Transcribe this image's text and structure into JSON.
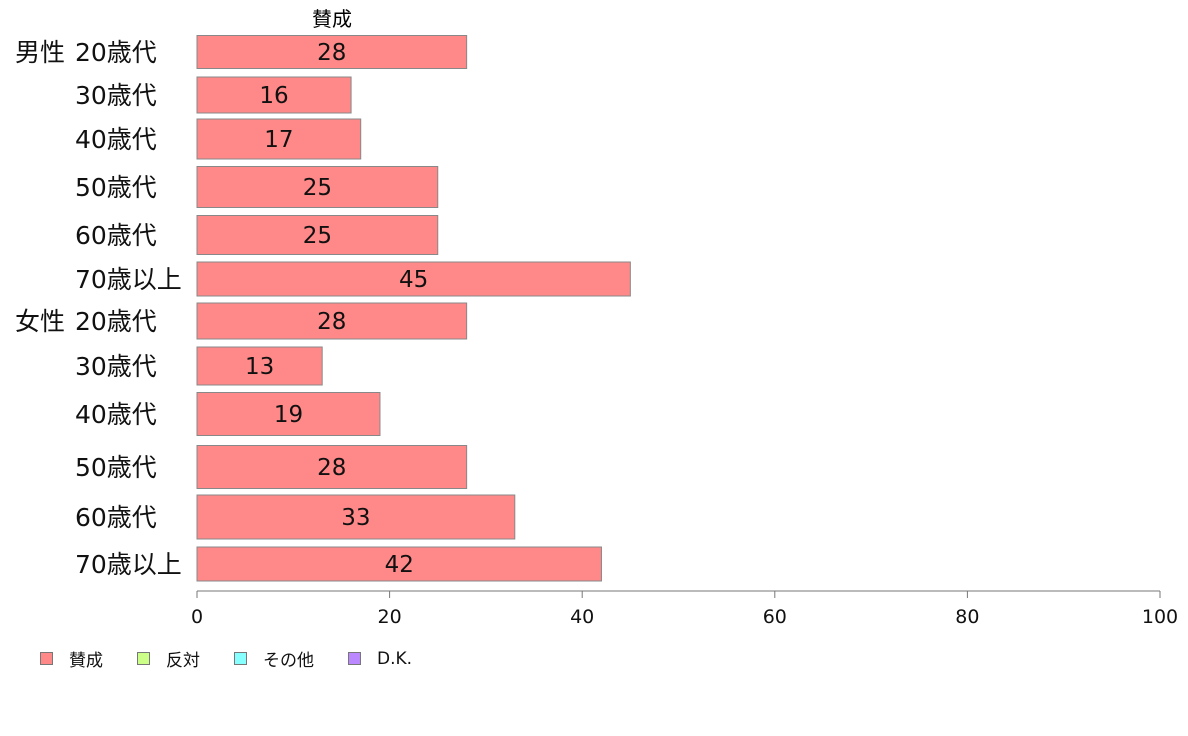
{
  "chart_data": {
    "type": "bar",
    "orientation": "horizontal",
    "stacked": true,
    "series_header": "賛成",
    "groups": [
      {
        "label": "男性",
        "rows": [
          "20歳代",
          "30歳代",
          "40歳代",
          "50歳代",
          "60歳代",
          "70歳以上"
        ]
      },
      {
        "label": "女性",
        "rows": [
          "20歳代",
          "30歳代",
          "40歳代",
          "50歳代",
          "60歳代",
          "70歳以上"
        ]
      }
    ],
    "series": [
      {
        "name": "賛成",
        "values": [
          28,
          16,
          17,
          25,
          25,
          45,
          28,
          13,
          19,
          28,
          33,
          42
        ]
      }
    ],
    "xlim": [
      0,
      100
    ],
    "xticks": [
      "0",
      "20",
      "40",
      "60",
      "80",
      "100"
    ],
    "legend_position": "bottom-left",
    "legend": [
      {
        "label": "賛成",
        "color": "#ff8888"
      },
      {
        "label": "反対",
        "color": "#ccff88"
      },
      {
        "label": "その他",
        "color": "#88ffff"
      },
      {
        "label": "D.K.",
        "color": "#bb88ff"
      }
    ],
    "bar_color": "#ff8888",
    "bar_border": "#888888"
  }
}
